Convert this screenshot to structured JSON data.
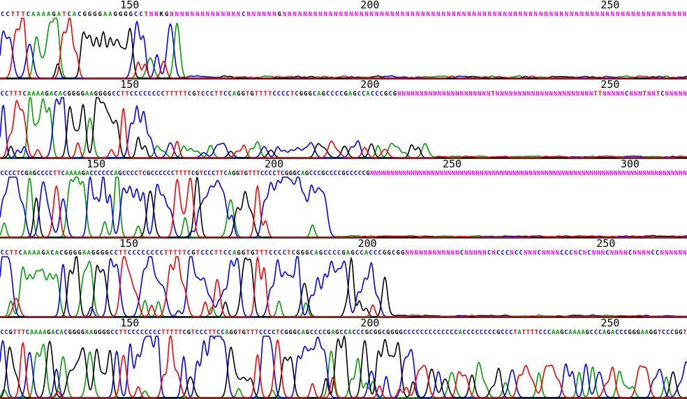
{
  "chart_data": {
    "type": "line",
    "title": "",
    "xlabel": "",
    "ylabel": "",
    "base_colors": {
      "A": "#00a000",
      "C": "#0000ff",
      "G": "#000000",
      "T": "#ff0000",
      "N": "#ff00ff"
    },
    "traces": [
      {
        "xlim": [
          123,
          266
        ],
        "ticks": [
          150,
          200,
          250
        ],
        "sequence": "CCTTTCAAAAGATCACGGGGAAGGGGCCTNNKGNNNNNNNNNNNNNNCNNNNNNGNNNNNNNNNNNNNNNNNNNNNNNNNNNNNNNNNNNNNNNNNNNNNNNNNNNNNNNNNNNNNNNNNNNNNNNNNNNNNNN",
        "signal_end": 160,
        "tail_level": 0.03
      },
      {
        "xlim": [
          123,
          266
        ],
        "ticks": [
          150,
          200,
          250
        ],
        "sequence": "CCTTTCAAAAGACACGGGGAAGGGGCCTTCCCCCCCCTTTTTCGTCCCTTCCAGGTGTTTTCCCCTCGGGCAGCCCCGAGCCACCCGCGNNNNNNNNNNNNNNNNNNNNNTNNNNNNNNNNNNNNNNNNNNNNTTNNNNNCNNNTNNTCNNNNN",
        "signal_end": 155,
        "tail_level": 0.22,
        "tail_end": 212
      },
      {
        "xlim": [
          123,
          316
        ],
        "ticks": [
          150,
          200,
          250,
          300
        ],
        "sequence": "CCCCTCGAGCCCCTTCAAAAGACCCCCCAGCCCCTCGCCCCCCTTTTCGTCCCTTCAGGTGTTTCCCCTCGGGCAGCCCGCCCCGCCCCCGNNNNNNNNNNNNNNNNNNNNNNNNNNNNNNNNNNNNNNNNNNNNNNNNNNNNNNNNNNNNNNNNNNNNNNNNNNNNNN",
        "signal_end": 215,
        "tail_level": 0.02
      },
      {
        "xlim": [
          123,
          267
        ],
        "ticks": [
          150,
          200,
          250
        ],
        "sequence": "CCTTCAAAAGACACGGGGAAGGGGCCTTCCCCCCCCTTTTTCGTCCCTTCCAGGTGTTTCCCCTCGGGCAGCCCCGAGCCACCCGGCGGNNNNNNNNNNNNCNNNNNCNCCCNCCNNNCNNNNCCCNCNCNNNCNNNNCNNNNCCNNNNNN",
        "signal_end": 205,
        "tail_level": 0.02
      },
      {
        "xlim": [
          123,
          266
        ],
        "ticks": [
          150,
          200,
          250
        ],
        "sequence": "CCGTTTCAAAAGACACGGGGAAGGGGCCTTCCCCCCCCTTTTTCGTCCCTTCCAGGTGTTTCCCCTCGGGCAGCCCCGAGCCACCCGCGGCGGGGCCCCCCCCCCCCCACCCCCCCCGCCCTATTTTCCCAAGCAAAAGCCCAGACCCGGGAAGGTCCCGGT",
        "signal_end": 209,
        "tail_level": 0.45,
        "tail_end": 266
      }
    ]
  }
}
